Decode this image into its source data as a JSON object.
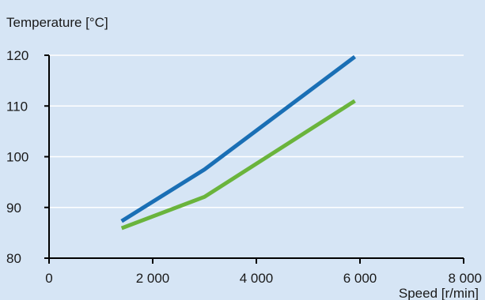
{
  "chart_data": {
    "type": "line",
    "title": "",
    "ylabel": "Temperature [°C]",
    "xlabel": "Speed [r/min]",
    "xlim": [
      0,
      8000
    ],
    "ylim": [
      80,
      120
    ],
    "x_ticks": [
      0,
      2000,
      4000,
      6000,
      8000
    ],
    "x_tick_labels": [
      "0",
      "2 000",
      "4 000",
      "6 000",
      "8 000"
    ],
    "y_ticks": [
      80,
      90,
      100,
      110,
      120
    ],
    "y_tick_labels": [
      "80",
      "90",
      "100",
      "110",
      "120"
    ],
    "grid": true,
    "legend": "none",
    "series": [
      {
        "color": "#1a6fb5",
        "points": [
          [
            1400,
            87.3
          ],
          [
            3000,
            97.5
          ],
          [
            5900,
            119.7
          ]
        ]
      },
      {
        "color": "#6ab43c",
        "points": [
          [
            1400,
            85.9
          ],
          [
            3000,
            92.1
          ],
          [
            5900,
            111.0
          ]
        ]
      }
    ]
  },
  "colors": {
    "background": "#d6e5f5",
    "gridline": "#ffffff",
    "axis": "#000000"
  }
}
